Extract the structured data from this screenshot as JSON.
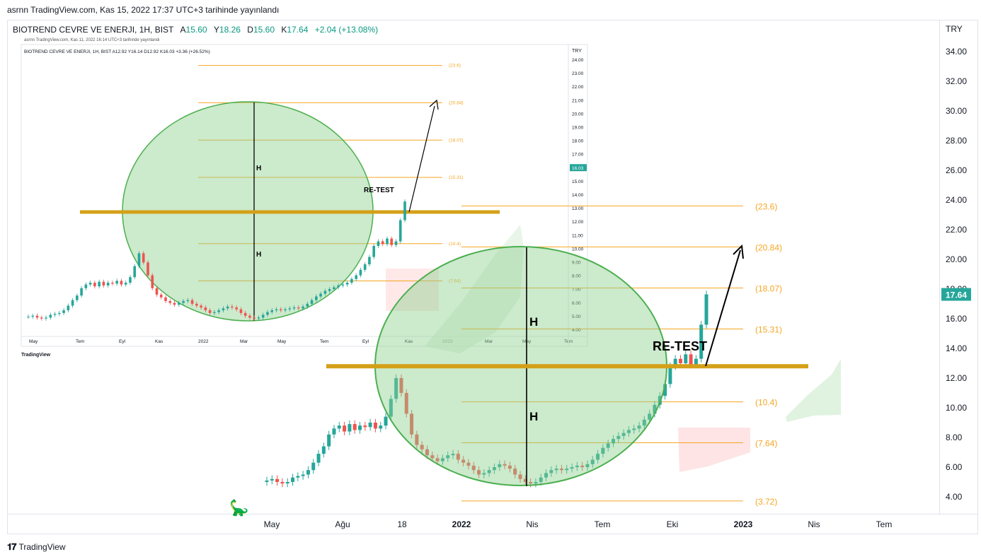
{
  "header": {
    "publish_line": "asrnn TradingView.com, Kas 15, 2022 17:37 UTC+3 tarihinde yayınlandı"
  },
  "legend": {
    "symbol": "BIOTREND CEVRE VE ENERJI, 1H, BIST",
    "open_label": "A",
    "open": "15.60",
    "high_label": "Y",
    "high": "18.26",
    "low_label": "D",
    "low": "15.60",
    "close_label": "K",
    "close": "17.64",
    "change": "+2.04 (+13.08%)"
  },
  "footer": {
    "brand": "TradingView"
  },
  "colors": {
    "up": "#26a69a",
    "down": "#ef5350",
    "level_line": "#f5a623",
    "support": "#d4a017",
    "ellipse_fill": "#8fd18f",
    "ellipse_stroke": "#4caf50",
    "price_badge": "#26a69a"
  },
  "chart_data": [
    {
      "type": "line",
      "title": "",
      "currency": "TRY",
      "ylim": [
        3.5,
        35
      ],
      "y_ticks": [
        "34.00",
        "32.00",
        "30.00",
        "28.00",
        "26.00",
        "24.00",
        "22.00",
        "20.00",
        "18.00",
        "16.00",
        "14.00",
        "12.00",
        "10.00",
        "8.00",
        "6.00",
        "4.00"
      ],
      "x_ticks": [
        "May",
        "Ağu",
        "18",
        "2022",
        "Nis",
        "Tem",
        "Eki",
        "2023",
        "Nis",
        "Tem"
      ],
      "last_price": "17.64",
      "fib_levels": [
        {
          "value": 23.6,
          "label": "(23.6)"
        },
        {
          "value": 20.84,
          "label": "(20.84)"
        },
        {
          "value": 18.07,
          "label": "(18.07)"
        },
        {
          "value": 15.31,
          "label": "(15.31)"
        },
        {
          "value": 10.4,
          "label": "(10.4)"
        },
        {
          "value": 7.64,
          "label": "(7.64)"
        },
        {
          "value": 3.72,
          "label": "(3.72)"
        }
      ],
      "support_level": 12.8,
      "annotations": [
        "RE-TEST",
        "H",
        "H"
      ],
      "series": [
        {
          "values": [
            5.1,
            5.2,
            5.0,
            4.9,
            5.0,
            5.3,
            5.4,
            5.5,
            5.8,
            6.3,
            6.9,
            7.4,
            8.2,
            8.6,
            8.8,
            8.4,
            8.9,
            8.5,
            8.8,
            8.7,
            9.0,
            8.6,
            8.8,
            9.4,
            10.6,
            12.0,
            11.0,
            9.6,
            8.2,
            7.5,
            7.2,
            6.8,
            6.6,
            6.4,
            6.6,
            6.8,
            6.9,
            6.5,
            6.3,
            6.1,
            5.8,
            5.5,
            5.6,
            5.8,
            6.0,
            6.2,
            6.1,
            5.9,
            5.5,
            5.2,
            5.0,
            4.9,
            5.0,
            5.3,
            5.6,
            5.8,
            5.9,
            5.8,
            5.9,
            6.0,
            6.1,
            6.0,
            6.2,
            6.5,
            6.9,
            7.3,
            7.6,
            7.9,
            8.1,
            8.3,
            8.5,
            8.6,
            8.8,
            9.2,
            9.6,
            10.2,
            10.8,
            11.6,
            12.8,
            13.3,
            13.0,
            13.6,
            12.9,
            13.3,
            15.6,
            17.64
          ]
        }
      ]
    },
    {
      "type": "line",
      "title": "",
      "header": "BIOTREND CEVRE VE ENERJI, 1H, BIST  A12.92 Y16.14 D12.92 K16.03 +3.36 (+26.52%)",
      "publish_line": "asrnn TradingView.com, Kas 11, 2022 16:14 UTC+3 tarihinde yayınlandı",
      "currency": "TRY",
      "y_ticks": [
        "24.00",
        "23.00",
        "22.00",
        "21.00",
        "20.00",
        "19.00",
        "18.00",
        "17.00",
        "16.00",
        "15.00",
        "14.00",
        "13.00",
        "12.00",
        "11.00",
        "10.00",
        "9.00",
        "8.00",
        "7.00",
        "6.00",
        "5.00",
        "4.00"
      ],
      "x_ticks": [
        "May",
        "Tem",
        "Eyl",
        "Kas",
        "2022",
        "Mar",
        "May",
        "Tem",
        "Eyl",
        "Kas",
        "2023",
        "Mar",
        "May",
        "Tem"
      ],
      "last_price": "16.03",
      "fib_levels": [
        {
          "value": 23.6,
          "label": "(23.6)"
        },
        {
          "value": 20.84,
          "label": "(20.84)"
        },
        {
          "value": 18.07,
          "label": "(18.07)"
        },
        {
          "value": 15.31,
          "label": "(15.31)"
        },
        {
          "value": 10.4,
          "label": "(10.4)"
        },
        {
          "value": 7.64,
          "label": "(7.64)"
        }
      ],
      "annotations": [
        "RE-TEST",
        "H",
        "H"
      ],
      "brand": "TradingView"
    }
  ]
}
